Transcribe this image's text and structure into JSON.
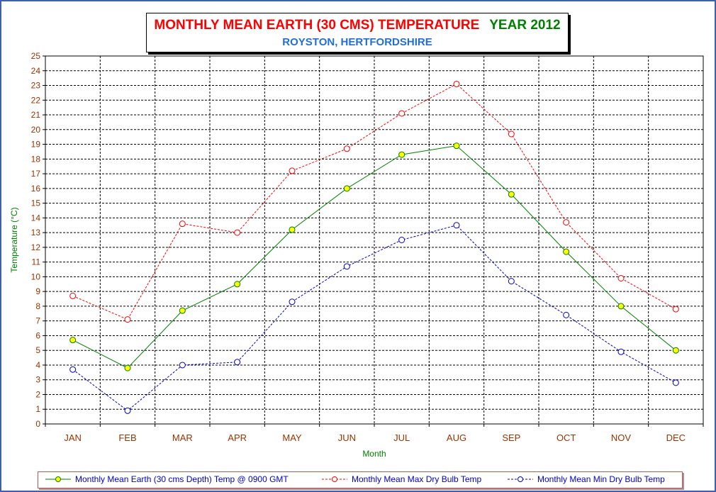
{
  "title": {
    "main": "MONTHLY MEAN  EARTH (30 CMS) TEMPERATURE",
    "year": "YEAR 2012",
    "subtitle": "ROYSTON, HERTFORDSHIRE"
  },
  "colors": {
    "title": "#ff0000",
    "year": "#008000",
    "subtitle": "#1f6fd6",
    "axis_label": "#008000",
    "tick_label": "#993300",
    "legend_text": "#0000cc"
  },
  "chart_data": {
    "type": "line",
    "xlabel": "Month",
    "ylabel": "Temperature (°C)",
    "ylim": [
      0,
      25
    ],
    "yticks": [
      0,
      1,
      2,
      3,
      4,
      5,
      6,
      7,
      8,
      9,
      10,
      11,
      12,
      13,
      14,
      15,
      16,
      17,
      18,
      19,
      20,
      21,
      22,
      23,
      24,
      25
    ],
    "grid": true,
    "legend_position": "bottom",
    "categories": [
      "JAN",
      "FEB",
      "MAR",
      "APR",
      "MAY",
      "JUN",
      "JUL",
      "AUG",
      "SEP",
      "OCT",
      "NOV",
      "DEC"
    ],
    "series": [
      {
        "name": "Monthly Mean Earth (30 cms Depth) Temp @ 0900 GMT",
        "color": "#008000",
        "marker_fill": "#ffff00",
        "dashed": false,
        "values": [
          5.7,
          3.8,
          7.7,
          9.5,
          13.2,
          16.0,
          18.3,
          18.9,
          15.6,
          11.7,
          8.0,
          5.0
        ]
      },
      {
        "name": "Monthly Mean Max Dry Bulb Temp",
        "color": "#ff0000",
        "marker_fill": "#ffffff",
        "dashed": true,
        "values": [
          8.7,
          7.1,
          13.6,
          13.0,
          17.2,
          18.7,
          21.1,
          23.1,
          19.7,
          13.7,
          9.9,
          7.8
        ]
      },
      {
        "name": "Monthly Mean Min Dry Bulb Temp",
        "color": "#0000cc",
        "marker_fill": "#ffffff",
        "dashed": true,
        "values": [
          3.7,
          0.9,
          4.0,
          4.2,
          8.3,
          10.7,
          12.5,
          13.5,
          9.7,
          7.4,
          4.9,
          2.8
        ]
      }
    ]
  }
}
